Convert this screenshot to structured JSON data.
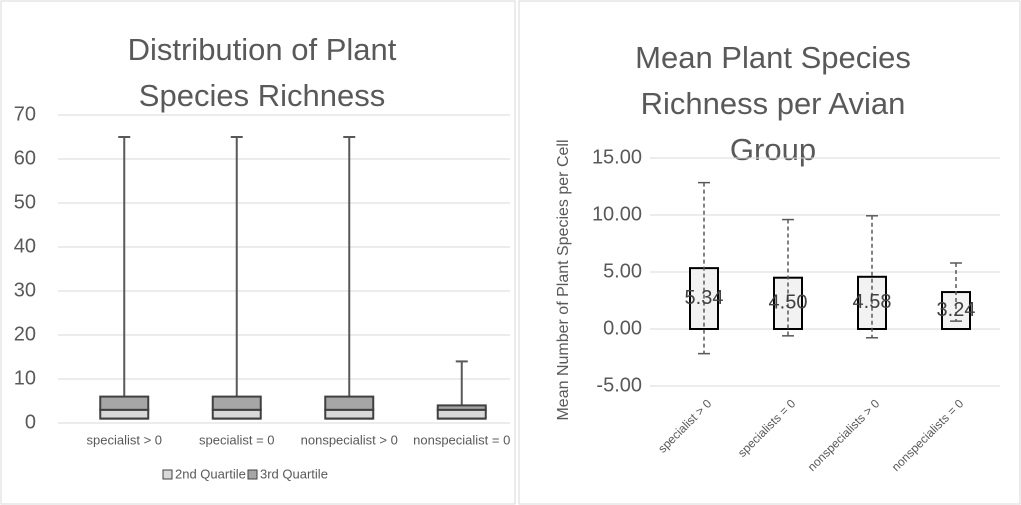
{
  "chart_data": [
    {
      "type": "box",
      "title": "Distribution of Plant Species Richness",
      "categories": [
        "specialist > 0",
        "specialist = 0",
        "nonspecialist > 0",
        "nonspecialist = 0"
      ],
      "q1": [
        1,
        1,
        1,
        1
      ],
      "whisker_max": [
        65,
        65,
        65,
        14
      ],
      "series": [
        {
          "name": "2nd Quartile",
          "color": "#d9d9d9",
          "values": [
            2,
            2,
            2,
            2
          ]
        },
        {
          "name": "3rd Quartile",
          "color": "#a6a6a6",
          "values": [
            3,
            3,
            3,
            1
          ]
        }
      ],
      "ylim": [
        0,
        70
      ],
      "yticks": [
        0,
        10,
        20,
        30,
        40,
        50,
        60,
        70
      ],
      "grid": true,
      "legend": "bottom"
    },
    {
      "type": "bar",
      "title": "Mean Plant Species Richness per Avian Group",
      "y_label": "Mean Number of Plant Species per Cell",
      "categories": [
        "specialist > 0",
        "specialists = 0",
        "nonspecialists > 0",
        "nonspecialists = 0"
      ],
      "values": [
        5.34,
        4.5,
        4.58,
        3.24
      ],
      "value_labels": [
        "5.34",
        "4.50",
        "4.58",
        "3.24"
      ],
      "errors": [
        7.5,
        5.1,
        5.35,
        2.55
      ],
      "color": "#f2f2f2",
      "ylim": [
        -5,
        15
      ],
      "yticks": [
        {
          "value": -5,
          "label": "-5.00"
        },
        {
          "value": 0,
          "label": "0.00"
        },
        {
          "value": 5,
          "label": "5.00"
        },
        {
          "value": 10,
          "label": "10.00"
        },
        {
          "value": 15,
          "label": "15.00"
        }
      ],
      "grid": true
    }
  ]
}
